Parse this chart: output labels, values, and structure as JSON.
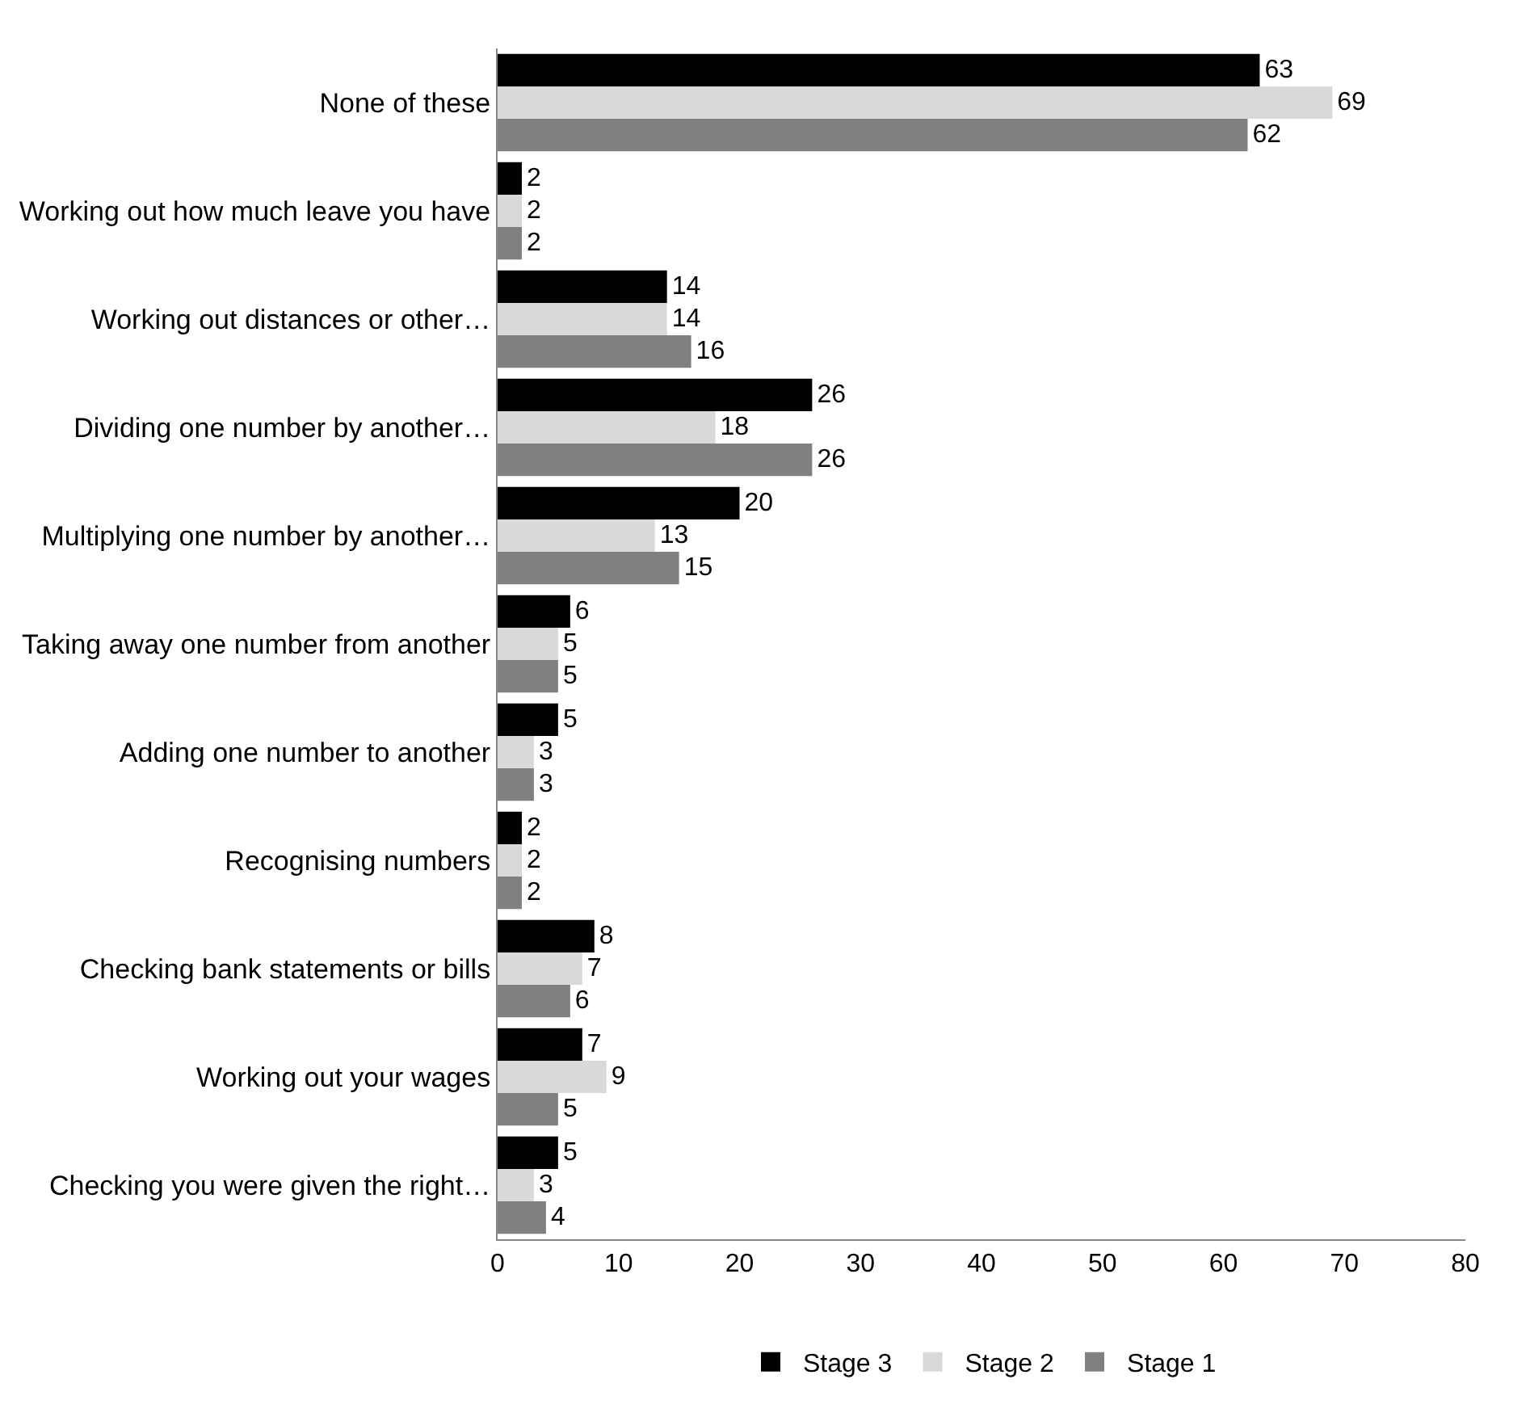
{
  "chart_data": {
    "type": "bar",
    "orientation": "horizontal",
    "categories": [
      "None of these",
      "Working out how much leave you have",
      "Working out distances or other…",
      "Dividing one number by another…",
      "Multiplying one number by another…",
      "Taking away one number from another",
      "Adding one number to another",
      "Recognising numbers",
      "Checking bank statements or bills",
      "Working out your wages",
      "Checking you were given the right…"
    ],
    "series": [
      {
        "name": "Stage 3",
        "color": "#000000",
        "values": [
          63,
          2,
          14,
          26,
          20,
          6,
          5,
          2,
          8,
          7,
          5
        ]
      },
      {
        "name": "Stage 2",
        "color": "#d9d9d9",
        "values": [
          69,
          2,
          14,
          18,
          13,
          5,
          3,
          2,
          7,
          9,
          3
        ]
      },
      {
        "name": "Stage 1",
        "color": "#808080",
        "values": [
          62,
          2,
          16,
          26,
          15,
          5,
          3,
          2,
          6,
          5,
          4
        ]
      }
    ],
    "xlim": [
      0,
      80
    ],
    "xticks": [
      0,
      10,
      20,
      30,
      40,
      50,
      60,
      70,
      80
    ],
    "data_labels": true,
    "legend": "bottom"
  }
}
